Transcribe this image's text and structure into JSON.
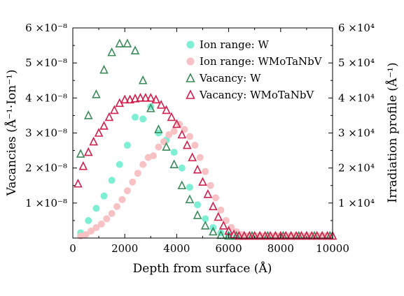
{
  "chart_data": {
    "type": "scatter",
    "xlabel": "Depth from surface (Å)",
    "ylabel_left": "Vacancies (Å⁻¹·Ion⁻¹)",
    "ylabel_right": "Irradiation profile (Å⁻¹)",
    "xlim": [
      0,
      10000
    ],
    "ylim_left": [
      0,
      6e-08
    ],
    "ylim_right": [
      0,
      60000
    ],
    "x_ticks": [
      "0",
      "2000",
      "4000",
      "6000",
      "8000",
      "10000"
    ],
    "y_left_ticks": [
      "1 ×10⁻⁸",
      "2 ×10⁻⁸",
      "3 ×10⁻⁸",
      "4 ×10⁻⁸",
      "5 ×10⁻⁸",
      "6 ×10⁻⁸"
    ],
    "y_right_ticks": [
      "1 ×10⁴",
      "2 ×10⁴",
      "3 ×10⁴",
      "4 ×10⁴",
      "5 ×10⁴",
      "6 ×10⁴"
    ],
    "grid": false,
    "legend_position": "top-right",
    "colors": {
      "ion_w": "#7eeed5",
      "ion_hea": "#f8c1c4",
      "vac_w": "#3c8a5a",
      "vac_hea": "#d21f4c"
    },
    "series": [
      {
        "name": "Ion range: W",
        "axis": "right",
        "marker": "circle",
        "color_key": "ion_w",
        "x": [
          300,
          600,
          900,
          1200,
          1500,
          1800,
          2100,
          2400,
          2700,
          3000,
          3300,
          3600,
          3900,
          4200,
          4500,
          4800,
          5100,
          5400,
          5700,
          6000,
          6300,
          6600,
          6900,
          7200,
          7500,
          7800,
          8100,
          8400,
          8700,
          9000,
          9300,
          9600,
          9900
        ],
        "y": [
          1500,
          5000,
          8500,
          12000,
          16500,
          21000,
          26500,
          34500,
          34000,
          37500,
          30000,
          28000,
          24500,
          20000,
          14500,
          9500,
          5500,
          3000,
          1500,
          800,
          400,
          200,
          100,
          50,
          30,
          20,
          10,
          10,
          10,
          10,
          10,
          10,
          10
        ]
      },
      {
        "name": "Ion range: WMoTaNbV",
        "axis": "right",
        "marker": "circle",
        "color_key": "ion_hea",
        "x": [
          300,
          500,
          700,
          900,
          1100,
          1300,
          1500,
          1700,
          1900,
          2100,
          2300,
          2500,
          2700,
          2900,
          3100,
          3300,
          3500,
          3700,
          3900,
          4100,
          4300,
          4500,
          4700,
          4900,
          5100,
          5300,
          5500,
          5700,
          5900,
          6100,
          6300,
          6500,
          6700,
          6900,
          7100,
          7300,
          7500,
          7700,
          7900,
          8100,
          8300,
          8500,
          8700,
          8900,
          9100,
          9300,
          9500,
          9700,
          9900
        ],
        "y": [
          200,
          1000,
          2000,
          3000,
          4000,
          5500,
          7000,
          9000,
          11000,
          13500,
          16000,
          18500,
          21000,
          23000,
          23500,
          26000,
          27500,
          29500,
          30500,
          32500,
          31000,
          29000,
          26500,
          23000,
          19000,
          15000,
          11500,
          8000,
          5000,
          3000,
          1800,
          1000,
          600,
          400,
          300,
          200,
          200,
          150,
          150,
          100,
          100,
          100,
          100,
          100,
          100,
          100,
          100,
          100,
          100
        ]
      },
      {
        "name": "Vacancy: W",
        "axis": "left",
        "marker": "triangle-open",
        "color_key": "vac_w",
        "x": [
          300,
          600,
          900,
          1200,
          1500,
          1800,
          2100,
          2400,
          2700,
          3000,
          3300,
          3600,
          3900,
          4200,
          4500,
          4800,
          5100,
          5400,
          5700,
          6000,
          6300,
          6600,
          6900,
          7200,
          7500,
          7800,
          8100,
          8400,
          8700,
          9000,
          9300,
          9600,
          9900
        ],
        "y": [
          2.4e-08,
          3.5e-08,
          4.1e-08,
          4.8e-08,
          5.3e-08,
          5.55e-08,
          5.55e-08,
          5.35e-08,
          4.5e-08,
          3.7e-08,
          3.1e-08,
          2.6e-08,
          2.1e-08,
          1.5e-08,
          1.1e-08,
          6.5e-09,
          3.5e-09,
          1.8e-09,
          8e-10,
          3e-10,
          1e-10,
          5e-11,
          2e-11,
          1e-11,
          0,
          0,
          0,
          0,
          0,
          0,
          0,
          0,
          0
        ]
      },
      {
        "name": "Vacancy: WMoTaNbV",
        "axis": "left",
        "marker": "triangle-open",
        "color_key": "vac_hea",
        "x": [
          200,
          400,
          600,
          800,
          1000,
          1200,
          1400,
          1600,
          1800,
          2000,
          2200,
          2400,
          2600,
          2800,
          3000,
          3200,
          3400,
          3600,
          3800,
          4000,
          4200,
          4400,
          4600,
          4800,
          5000,
          5200,
          5400,
          5600,
          5800,
          6000,
          6200,
          6400,
          6600,
          6800,
          7000,
          7200,
          7400,
          7600,
          7800,
          8000,
          8200,
          8400,
          8600,
          8800,
          9000,
          9200,
          9400,
          9600,
          9800,
          10000
        ],
        "y": [
          1.55e-08,
          2.05e-08,
          2.45e-08,
          2.75e-08,
          3e-08,
          3.2e-08,
          3.45e-08,
          3.65e-08,
          3.85e-08,
          3.95e-08,
          3.95e-08,
          3.98e-08,
          4e-08,
          4e-08,
          4e-08,
          3.95e-08,
          3.8e-08,
          3.65e-08,
          3.45e-08,
          3.25e-08,
          2.95e-08,
          2.65e-08,
          2.3e-08,
          1.95e-08,
          1.6e-08,
          1.25e-08,
          9e-09,
          6e-09,
          3.5e-09,
          2e-09,
          1e-09,
          5e-10,
          2e-10,
          1e-10,
          5e-11,
          3e-11,
          2e-11,
          1e-11,
          0,
          0,
          0,
          0,
          0,
          0,
          0,
          0,
          0,
          0,
          0,
          0
        ]
      }
    ]
  }
}
